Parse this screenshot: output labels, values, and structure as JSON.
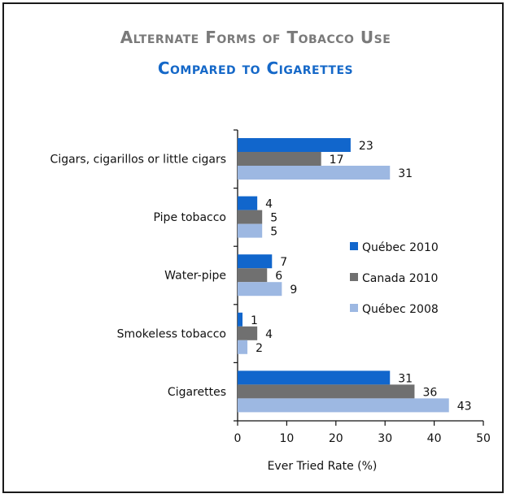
{
  "chart_data": {
    "type": "bar",
    "orientation": "horizontal",
    "title": "Alternate Forms of Tobacco Use",
    "subtitle": "Compared to Cigarettes",
    "xlabel": "Ever Tried Rate (%)",
    "ylabel": "",
    "xlim": [
      0,
      50
    ],
    "xticks": [
      0,
      10,
      20,
      30,
      40,
      50
    ],
    "grid": false,
    "legend_position": "right",
    "categories": [
      "Cigars, cigarillos or little cigars",
      "Pipe tobacco",
      "Water-pipe",
      "Smokeless tobacco",
      "Cigarettes"
    ],
    "series": [
      {
        "name": "Québec 2010",
        "color": "#1166cc",
        "values": [
          23,
          4,
          7,
          1,
          31
        ]
      },
      {
        "name": "Canada 2010",
        "color": "#707070",
        "values": [
          17,
          5,
          6,
          4,
          36
        ]
      },
      {
        "name": "Québec 2008",
        "color": "#9db8e2",
        "values": [
          31,
          5,
          9,
          2,
          43
        ]
      }
    ]
  }
}
